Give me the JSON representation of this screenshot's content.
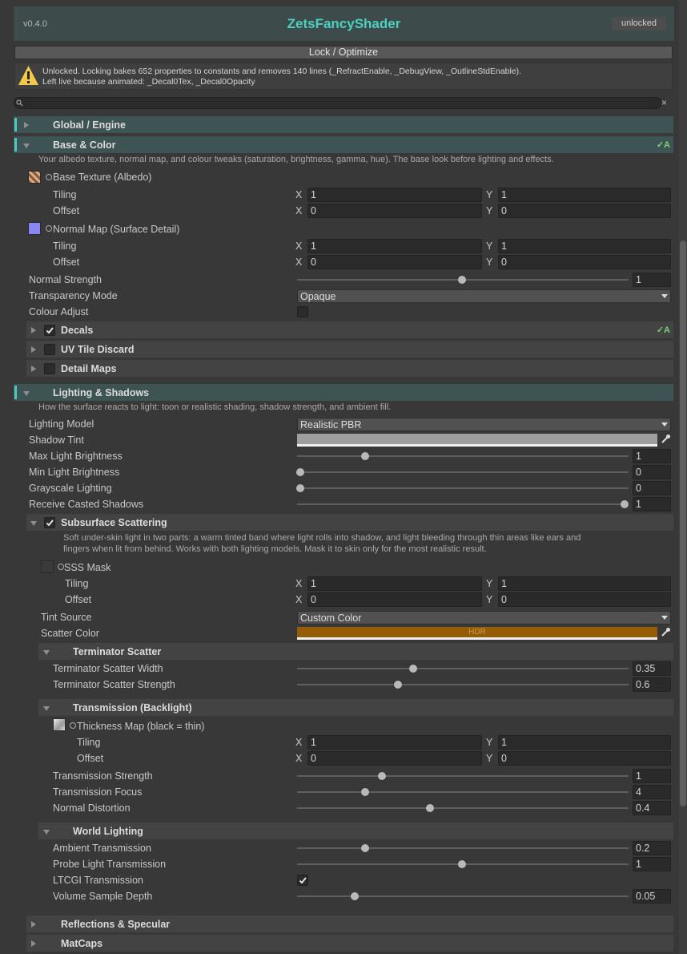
{
  "header": {
    "version": "v0.4.0",
    "title": "ZetsFancyShader",
    "status": "unlocked"
  },
  "lock_button": "Lock / Optimize",
  "warning": {
    "line1": "Unlocked. Locking bakes 652 properties to constants and removes 140 lines (_RefractEnable, _DebugView, _OutlineStdEnable).",
    "line2": "Left live because animated: _Decal0Tex, _Decal0Opacity"
  },
  "search_clear": "×",
  "axis_labels": {
    "x": "X",
    "y": "Y"
  },
  "global_engine": {
    "title": "Global / Engine"
  },
  "base_color": {
    "title": "Base & Color",
    "badge": "✓A",
    "description": "Your albedo texture, normal map, and colour tweaks (saturation, brightness, gamma, hue). The base look before lighting and effects.",
    "base_texture": {
      "label": "Base Texture (Albedo)",
      "tiling": {
        "label": "Tiling",
        "x": 1,
        "y": 1
      },
      "offset": {
        "label": "Offset",
        "x": 0,
        "y": 0
      }
    },
    "normal_map": {
      "label": "Normal Map (Surface Detail)",
      "tiling": {
        "label": "Tiling",
        "x": 1,
        "y": 1
      },
      "offset": {
        "label": "Offset",
        "x": 0,
        "y": 0
      }
    },
    "normal_strength": {
      "label": "Normal Strength",
      "value": 1
    },
    "transparency_mode": {
      "label": "Transparency Mode",
      "value": "Opaque"
    },
    "colour_adjust": {
      "label": "Colour Adjust"
    },
    "decals": {
      "label": "Decals",
      "badge": "✓A"
    },
    "uv_tile_discard": {
      "label": "UV Tile Discard"
    },
    "detail_maps": {
      "label": "Detail Maps"
    }
  },
  "lighting_shadows": {
    "title": "Lighting & Shadows",
    "description": "How the surface reacts to light: toon or realistic shading, shadow strength, and ambient fill.",
    "lighting_model": {
      "label": "Lighting Model",
      "value": "Realistic PBR"
    },
    "shadow_tint": {
      "label": "Shadow Tint"
    },
    "max_light_brightness": {
      "label": "Max Light Brightness",
      "value": 1
    },
    "min_light_brightness": {
      "label": "Min Light Brightness",
      "value": 0
    },
    "grayscale_lighting": {
      "label": "Grayscale Lighting",
      "value": 0
    },
    "receive_casted_shadows": {
      "label": "Receive Casted Shadows",
      "value": 1
    },
    "subsurface_scattering": {
      "label": "Subsurface Scattering",
      "description": [
        "Soft under-skin light in two parts: a warm tinted band where light rolls into shadow, and light bleeding through thin areas like ears and",
        "fingers when lit from behind. Works with both lighting models. Mask it to skin only for the most realistic result."
      ],
      "sss_mask": {
        "label": "SSS Mask",
        "tiling": {
          "label": "Tiling",
          "x": 1,
          "y": 1
        },
        "offset": {
          "label": "Offset",
          "x": 0,
          "y": 0
        }
      },
      "tint_source": {
        "label": "Tint Source",
        "value": "Custom Color"
      },
      "scatter_color": {
        "label": "Scatter Color",
        "badge": "HDR"
      },
      "terminator_scatter": {
        "label": "Terminator Scatter",
        "width": {
          "label": "Terminator Scatter Width",
          "value": 0.35
        },
        "strength": {
          "label": "Terminator Scatter Strength",
          "value": 0.6
        }
      },
      "transmission": {
        "label": "Transmission (Backlight)",
        "thickness_map": {
          "label": "Thickness Map (black = thin)",
          "tiling": {
            "label": "Tiling",
            "x": 1,
            "y": 1
          },
          "offset": {
            "label": "Offset",
            "x": 0,
            "y": 0
          }
        },
        "strength": {
          "label": "Transmission Strength",
          "value": 1
        },
        "focus": {
          "label": "Transmission Focus",
          "value": 4
        },
        "normal_distortion": {
          "label": "Normal Distortion",
          "value": 0.4
        }
      },
      "world_lighting": {
        "label": "World Lighting",
        "ambient_transmission": {
          "label": "Ambient Transmission",
          "value": 0.2
        },
        "probe_light_transmission": {
          "label": "Probe Light Transmission",
          "value": 1
        },
        "ltcgi_transmission": {
          "label": "LTCGI Transmission"
        },
        "volume_sample_depth": {
          "label": "Volume Sample Depth",
          "value": 0.05
        }
      }
    }
  },
  "reflections_specular": {
    "label": "Reflections & Specular"
  },
  "matcaps": {
    "label": "MatCaps"
  }
}
